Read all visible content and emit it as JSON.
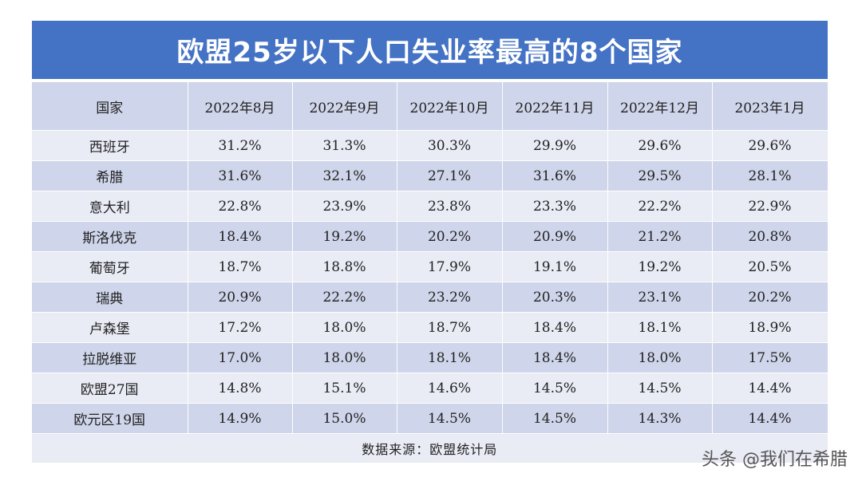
{
  "title": "欧盟25岁以下人口失业率最高的8个国家",
  "source_note": "数据来源：欧盟统计局",
  "watermark": "头条 @我们在希腊",
  "colors": {
    "title_bg": "#4472c4",
    "row_dark": "#cfd5ea",
    "row_light": "#e9ebf5"
  },
  "chart_data": {
    "type": "table",
    "title": "欧盟25岁以下人口失业率最高的8个国家",
    "columns": [
      "国家",
      "2022年8月",
      "2022年9月",
      "2022年10月",
      "2022年11月",
      "2022年12月",
      "2023年1月"
    ],
    "rows": [
      {
        "label": "西班牙",
        "values": [
          "31.2%",
          "31.3%",
          "30.3%",
          "29.9%",
          "29.6%",
          "29.6%"
        ]
      },
      {
        "label": "希腊",
        "values": [
          "31.6%",
          "32.1%",
          "27.1%",
          "31.6%",
          "29.5%",
          "28.1%"
        ]
      },
      {
        "label": "意大利",
        "values": [
          "22.8%",
          "23.9%",
          "23.8%",
          "23.3%",
          "22.2%",
          "22.9%"
        ]
      },
      {
        "label": "斯洛伐克",
        "values": [
          "18.4%",
          "19.2%",
          "20.2%",
          "20.9%",
          "21.2%",
          "20.8%"
        ]
      },
      {
        "label": "葡萄牙",
        "values": [
          "18.7%",
          "18.8%",
          "17.9%",
          "19.1%",
          "19.2%",
          "20.5%"
        ]
      },
      {
        "label": "瑞典",
        "values": [
          "20.9%",
          "22.2%",
          "23.2%",
          "20.3%",
          "23.1%",
          "20.2%"
        ]
      },
      {
        "label": "卢森堡",
        "values": [
          "17.2%",
          "18.0%",
          "18.7%",
          "18.4%",
          "18.1%",
          "18.9%"
        ]
      },
      {
        "label": "拉脱维亚",
        "values": [
          "17.0%",
          "18.0%",
          "18.1%",
          "18.4%",
          "18.0%",
          "17.5%"
        ]
      },
      {
        "label": "欧盟27国",
        "values": [
          "14.8%",
          "15.1%",
          "14.6%",
          "14.5%",
          "14.5%",
          "14.4%"
        ]
      },
      {
        "label": "欧元区19国",
        "values": [
          "14.9%",
          "15.0%",
          "14.5%",
          "14.5%",
          "14.3%",
          "14.4%"
        ]
      }
    ]
  }
}
